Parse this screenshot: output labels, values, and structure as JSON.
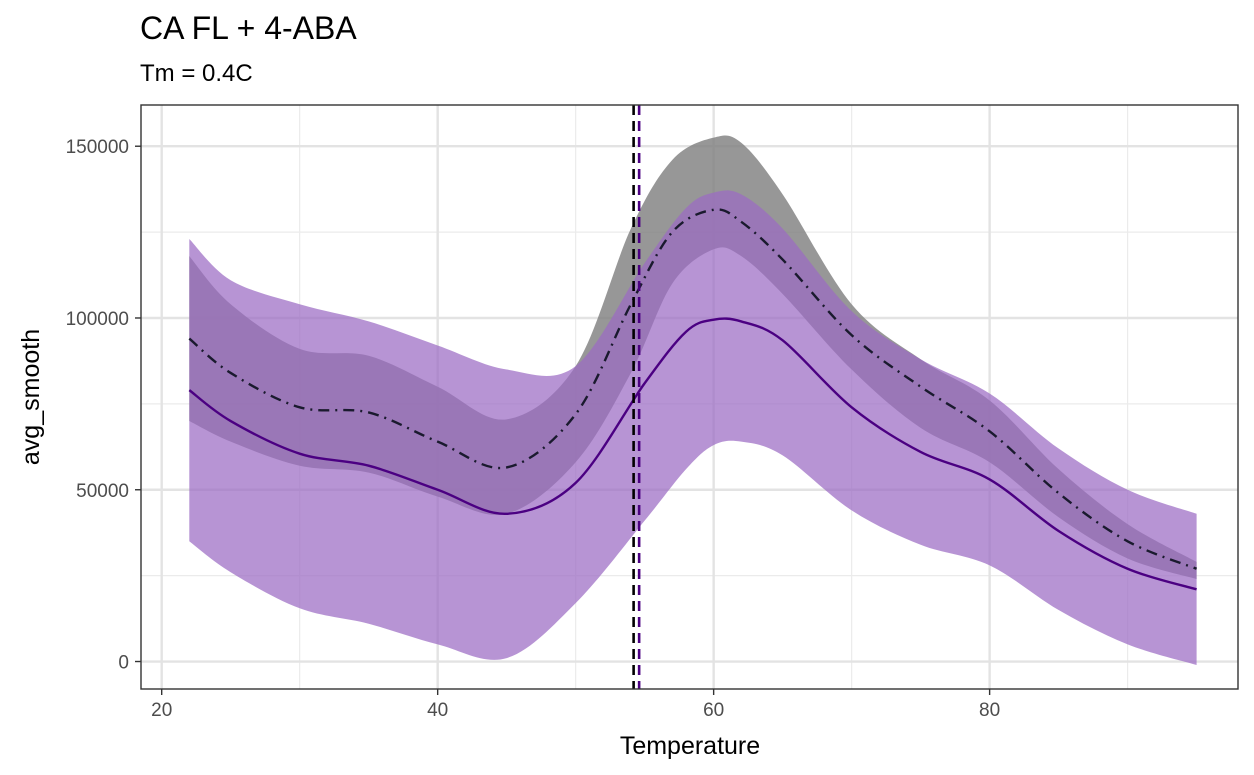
{
  "chart_data": {
    "type": "line",
    "title": "CA FL + 4-ABA",
    "subtitle": "Tm = 0.4C",
    "xlabel": "Temperature",
    "ylabel": "avg_smooth",
    "xlim": [
      18.5,
      98
    ],
    "ylim": [
      -8000,
      162000
    ],
    "x_ticks": [
      20,
      40,
      60,
      80
    ],
    "y_ticks": [
      0,
      50000,
      100000,
      150000
    ],
    "x_tick_labels": [
      "20",
      "40",
      "60",
      "80"
    ],
    "y_tick_labels": [
      "0",
      "50000",
      "100000",
      "150000"
    ],
    "grid": true,
    "legend": "none",
    "colors": {
      "gray_band": "#808080",
      "purple_band": "#9b6bc3",
      "purple_line": "#4b0082",
      "dashdot_line": "#1a1a2e",
      "vline_black": "#000000",
      "vline_purple": "#4b0082"
    },
    "series": [
      {
        "style": "dashdot",
        "x": [
          22,
          25,
          30,
          35,
          40,
          45,
          50,
          54,
          57,
          60,
          62,
          65,
          70,
          75,
          80,
          85,
          90,
          95
        ],
        "y": [
          94000,
          84000,
          74000,
          72500,
          64000,
          56500,
          72000,
          104000,
          125000,
          131500,
          128000,
          117000,
          95000,
          80000,
          67000,
          49000,
          35000,
          27000
        ],
        "band_lower": [
          70000,
          64000,
          57000,
          55000,
          48000,
          43000,
          58000,
          84000,
          110000,
          120000,
          118000,
          107000,
          85000,
          68000,
          58000,
          42000,
          30000,
          24000
        ],
        "band_upper": [
          118000,
          104000,
          91000,
          89000,
          80000,
          70500,
          86000,
          126000,
          146000,
          152500,
          151000,
          136000,
          104000,
          88000,
          76000,
          56000,
          40000,
          29000
        ]
      },
      {
        "style": "solid",
        "x": [
          22,
          25,
          30,
          35,
          40,
          45,
          50,
          55,
          58,
          60,
          62,
          65,
          70,
          75,
          80,
          85,
          90,
          95
        ],
        "y": [
          79000,
          70000,
          60500,
          57000,
          50000,
          43000,
          52000,
          81000,
          96000,
          99500,
          99000,
          93500,
          74000,
          61000,
          53000,
          38000,
          27000,
          21000
        ],
        "band_lower": [
          35000,
          26000,
          15500,
          11000,
          5000,
          1000,
          17000,
          41000,
          56000,
          63000,
          64000,
          60000,
          44000,
          34000,
          28000,
          15000,
          5000,
          -1000
        ],
        "band_upper": [
          123000,
          111000,
          104000,
          99000,
          92000,
          85000,
          86000,
          116000,
          132000,
          136500,
          136000,
          126000,
          102000,
          88000,
          78000,
          62000,
          50000,
          43000
        ]
      }
    ],
    "vlines": [
      {
        "x": 54.2,
        "style": "dashed"
      },
      {
        "x": 54.6,
        "style": "dashed"
      }
    ]
  }
}
